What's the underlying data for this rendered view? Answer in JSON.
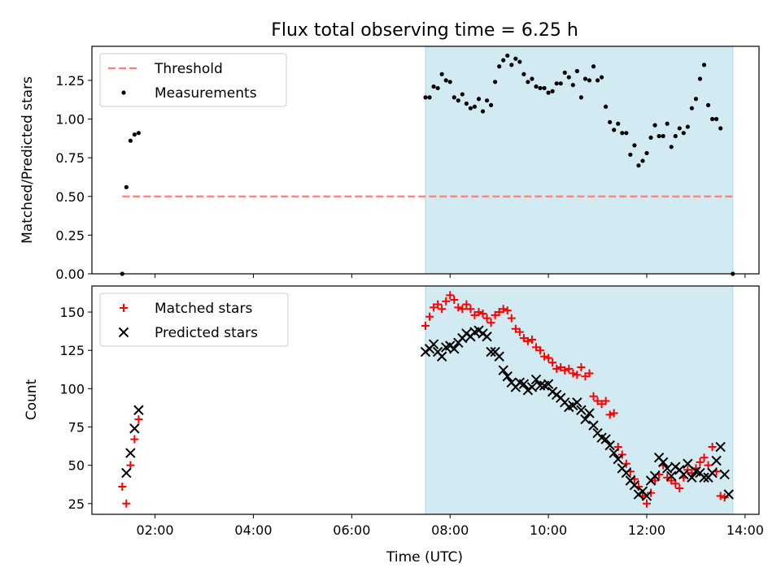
{
  "chart_data": [
    {
      "type": "scatter",
      "title": "Flux total observing time = 6.25 h",
      "xlabel": "",
      "ylabel": "Matched/Predicted stars",
      "ylim": [
        0,
        1.47
      ],
      "yticks": [
        "0.00",
        "0.25",
        "0.50",
        "0.75",
        "1.00",
        "1.25"
      ],
      "legend_position": "top-left",
      "shaded_interval": [
        "07:30",
        "13:45"
      ],
      "shade_color": "#add8e6",
      "threshold": {
        "name": "Threshold",
        "value": 0.5,
        "x_range": [
          "01:20",
          "13:45"
        ],
        "color": "#ff7f7f",
        "style": "dashed"
      },
      "series": [
        {
          "name": "Measurements",
          "marker": "dot",
          "color": "#000000",
          "points": [
            [
              "01:20",
              0.0
            ],
            [
              "01:25",
              0.56
            ],
            [
              "01:30",
              0.86
            ],
            [
              "01:35",
              0.9
            ],
            [
              "01:40",
              0.91
            ],
            [
              "07:30",
              1.14
            ],
            [
              "07:35",
              1.14
            ],
            [
              "07:40",
              1.21
            ],
            [
              "07:45",
              1.2
            ],
            [
              "07:50",
              1.29
            ],
            [
              "07:55",
              1.25
            ],
            [
              "08:00",
              1.24
            ],
            [
              "08:05",
              1.14
            ],
            [
              "08:10",
              1.12
            ],
            [
              "08:15",
              1.16
            ],
            [
              "08:20",
              1.1
            ],
            [
              "08:25",
              1.07
            ],
            [
              "08:30",
              1.08
            ],
            [
              "08:35",
              1.13
            ],
            [
              "08:40",
              1.05
            ],
            [
              "08:45",
              1.12
            ],
            [
              "08:50",
              1.09
            ],
            [
              "08:55",
              1.24
            ],
            [
              "09:00",
              1.34
            ],
            [
              "09:05",
              1.38
            ],
            [
              "09:10",
              1.41
            ],
            [
              "09:15",
              1.35
            ],
            [
              "09:20",
              1.39
            ],
            [
              "09:25",
              1.37
            ],
            [
              "09:30",
              1.29
            ],
            [
              "09:35",
              1.24
            ],
            [
              "09:40",
              1.26
            ],
            [
              "09:45",
              1.21
            ],
            [
              "09:50",
              1.2
            ],
            [
              "09:55",
              1.2
            ],
            [
              "10:00",
              1.17
            ],
            [
              "10:05",
              1.18
            ],
            [
              "10:10",
              1.23
            ],
            [
              "10:15",
              1.23
            ],
            [
              "10:20",
              1.3
            ],
            [
              "10:25",
              1.27
            ],
            [
              "10:30",
              1.22
            ],
            [
              "10:35",
              1.31
            ],
            [
              "10:40",
              1.14
            ],
            [
              "10:45",
              1.26
            ],
            [
              "10:50",
              1.25
            ],
            [
              "10:55",
              1.34
            ],
            [
              "11:00",
              1.25
            ],
            [
              "11:05",
              1.27
            ],
            [
              "11:10",
              1.08
            ],
            [
              "11:15",
              0.98
            ],
            [
              "11:20",
              0.93
            ],
            [
              "11:25",
              0.97
            ],
            [
              "11:30",
              0.91
            ],
            [
              "11:35",
              0.91
            ],
            [
              "11:40",
              0.77
            ],
            [
              "11:45",
              0.83
            ],
            [
              "11:50",
              0.7
            ],
            [
              "11:55",
              0.73
            ],
            [
              "12:00",
              0.78
            ],
            [
              "12:05",
              0.88
            ],
            [
              "12:10",
              0.96
            ],
            [
              "12:15",
              0.89
            ],
            [
              "12:20",
              0.89
            ],
            [
              "12:25",
              0.97
            ],
            [
              "12:30",
              0.82
            ],
            [
              "12:35",
              0.89
            ],
            [
              "12:40",
              0.94
            ],
            [
              "12:45",
              0.91
            ],
            [
              "12:50",
              0.95
            ],
            [
              "12:55",
              1.07
            ],
            [
              "13:00",
              1.13
            ],
            [
              "13:05",
              1.26
            ],
            [
              "13:10",
              1.35
            ],
            [
              "13:15",
              1.09
            ],
            [
              "13:20",
              1.0
            ],
            [
              "13:25",
              1.0
            ],
            [
              "13:30",
              0.94
            ],
            [
              "13:45",
              0.0
            ]
          ]
        }
      ]
    },
    {
      "type": "scatter",
      "title": "",
      "xlabel": "Time (UTC)",
      "ylabel": "Count",
      "ylim": [
        18,
        167
      ],
      "yticks": [
        "25",
        "50",
        "75",
        "100",
        "125",
        "150"
      ],
      "xticks": [
        "02:00",
        "04:00",
        "06:00",
        "08:00",
        "10:00",
        "12:00",
        "14:00"
      ],
      "xlim": [
        "00:43",
        "14:17"
      ],
      "legend_position": "top-left",
      "shaded_interval": [
        "07:30",
        "13:45"
      ],
      "shade_color": "#add8e6",
      "series": [
        {
          "name": "Matched stars",
          "marker": "plus",
          "color": "#ff0000",
          "points": [
            [
              "01:20",
              36
            ],
            [
              "01:25",
              25
            ],
            [
              "01:30",
              50
            ],
            [
              "01:35",
              67
            ],
            [
              "01:40",
              80
            ],
            [
              "07:30",
              141
            ],
            [
              "07:35",
              147
            ],
            [
              "07:40",
              153
            ],
            [
              "07:45",
              155
            ],
            [
              "07:50",
              152
            ],
            [
              "07:55",
              157
            ],
            [
              "08:00",
              161
            ],
            [
              "08:05",
              158
            ],
            [
              "08:10",
              153
            ],
            [
              "08:15",
              152
            ],
            [
              "08:20",
              155
            ],
            [
              "08:25",
              152
            ],
            [
              "08:30",
              148
            ],
            [
              "08:35",
              150
            ],
            [
              "08:40",
              149
            ],
            [
              "08:45",
              146
            ],
            [
              "08:50",
              143
            ],
            [
              "08:55",
              148
            ],
            [
              "09:00",
              150
            ],
            [
              "09:05",
              152
            ],
            [
              "09:10",
              151
            ],
            [
              "09:15",
              146
            ],
            [
              "09:20",
              139
            ],
            [
              "09:25",
              137
            ],
            [
              "09:30",
              133
            ],
            [
              "09:35",
              131
            ],
            [
              "09:40",
              132
            ],
            [
              "09:45",
              127
            ],
            [
              "09:50",
              125
            ],
            [
              "09:55",
              121
            ],
            [
              "10:00",
              120
            ],
            [
              "10:05",
              117
            ],
            [
              "10:10",
              113
            ],
            [
              "10:15",
              114
            ],
            [
              "10:20",
              112
            ],
            [
              "10:25",
              113
            ],
            [
              "10:30",
              110
            ],
            [
              "10:35",
              109
            ],
            [
              "10:40",
              114
            ],
            [
              "10:45",
              108
            ],
            [
              "10:50",
              110
            ],
            [
              "10:55",
              95
            ],
            [
              "11:00",
              92
            ],
            [
              "11:05",
              90
            ],
            [
              "11:10",
              92
            ],
            [
              "11:15",
              83
            ],
            [
              "11:20",
              84
            ],
            [
              "11:25",
              62
            ],
            [
              "11:30",
              57
            ],
            [
              "11:35",
              51
            ],
            [
              "11:40",
              46
            ],
            [
              "11:45",
              41
            ],
            [
              "11:50",
              36
            ],
            [
              "11:55",
              30
            ],
            [
              "12:00",
              25
            ],
            [
              "12:05",
              32
            ],
            [
              "12:10",
              40
            ],
            [
              "12:15",
              44
            ],
            [
              "12:20",
              50
            ],
            [
              "12:25",
              42
            ],
            [
              "12:30",
              40
            ],
            [
              "12:35",
              38
            ],
            [
              "12:40",
              35
            ],
            [
              "12:45",
              42
            ],
            [
              "12:50",
              47
            ],
            [
              "12:55",
              45
            ],
            [
              "13:00",
              48
            ],
            [
              "13:05",
              52
            ],
            [
              "13:10",
              55
            ],
            [
              "13:15",
              50
            ],
            [
              "13:20",
              62
            ],
            [
              "13:25",
              46
            ],
            [
              "13:30",
              30
            ],
            [
              "13:35",
              29
            ]
          ]
        },
        {
          "name": "Predicted stars",
          "marker": "cross",
          "color": "#000000",
          "points": [
            [
              "01:25",
              45
            ],
            [
              "01:30",
              58
            ],
            [
              "01:35",
              74
            ],
            [
              "01:40",
              86
            ],
            [
              "07:30",
              124
            ],
            [
              "07:35",
              126
            ],
            [
              "07:40",
              129
            ],
            [
              "07:45",
              124
            ],
            [
              "07:50",
              121
            ],
            [
              "07:55",
              127
            ],
            [
              "08:00",
              128
            ],
            [
              "08:05",
              126
            ],
            [
              "08:10",
              130
            ],
            [
              "08:15",
              133
            ],
            [
              "08:20",
              136
            ],
            [
              "08:25",
              134
            ],
            [
              "08:30",
              137
            ],
            [
              "08:35",
              138
            ],
            [
              "08:40",
              136
            ],
            [
              "08:45",
              134
            ],
            [
              "08:50",
              124
            ],
            [
              "08:55",
              124
            ],
            [
              "09:00",
              121
            ],
            [
              "09:05",
              112
            ],
            [
              "09:10",
              108
            ],
            [
              "09:15",
              104
            ],
            [
              "09:20",
              101
            ],
            [
              "09:25",
              104
            ],
            [
              "09:30",
              103
            ],
            [
              "09:35",
              99
            ],
            [
              "09:40",
              101
            ],
            [
              "09:45",
              106
            ],
            [
              "09:50",
              102
            ],
            [
              "09:55",
              102
            ],
            [
              "10:00",
              103
            ],
            [
              "10:05",
              98
            ],
            [
              "10:10",
              96
            ],
            [
              "10:15",
              94
            ],
            [
              "10:20",
              91
            ],
            [
              "10:25",
              88
            ],
            [
              "10:30",
              89
            ],
            [
              "10:35",
              91
            ],
            [
              "10:40",
              86
            ],
            [
              "10:45",
              80
            ],
            [
              "10:50",
              84
            ],
            [
              "10:55",
              76
            ],
            [
              "11:00",
              71
            ],
            [
              "11:05",
              68
            ],
            [
              "11:10",
              67
            ],
            [
              "11:15",
              63
            ],
            [
              "11:20",
              58
            ],
            [
              "11:25",
              54
            ],
            [
              "11:30",
              48
            ],
            [
              "11:35",
              45
            ],
            [
              "11:40",
              40
            ],
            [
              "11:45",
              37
            ],
            [
              "11:50",
              31
            ],
            [
              "11:55",
              33
            ],
            [
              "12:00",
              30
            ],
            [
              "12:05",
              40
            ],
            [
              "12:10",
              43
            ],
            [
              "12:15",
              55
            ],
            [
              "12:20",
              52
            ],
            [
              "12:25",
              48
            ],
            [
              "12:30",
              43
            ],
            [
              "12:35",
              49
            ],
            [
              "12:40",
              47
            ],
            [
              "12:45",
              44
            ],
            [
              "12:50",
              51
            ],
            [
              "12:55",
              42
            ],
            [
              "13:00",
              46
            ],
            [
              "13:05",
              45
            ],
            [
              "13:10",
              42
            ],
            [
              "13:15",
              42
            ],
            [
              "13:20",
              45
            ],
            [
              "13:25",
              53
            ],
            [
              "13:30",
              62
            ],
            [
              "13:35",
              44
            ],
            [
              "13:40",
              31
            ]
          ]
        }
      ]
    }
  ]
}
